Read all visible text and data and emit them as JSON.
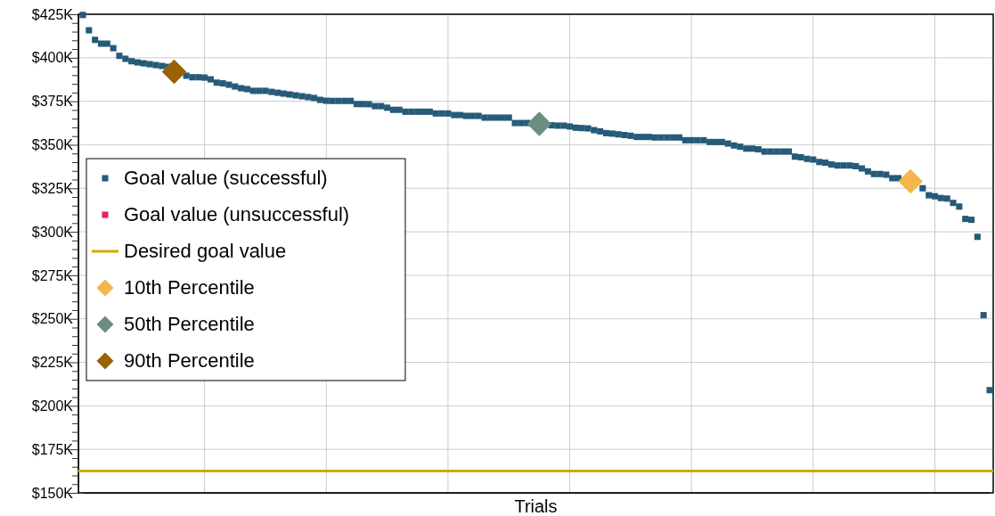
{
  "chart_data": {
    "type": "scatter",
    "xlabel": "Trials",
    "categories": [
      null,
      null,
      null,
      null,
      null,
      null,
      null,
      null,
      null,
      null,
      null,
      null,
      null,
      null,
      null,
      null,
      null,
      null,
      null,
      null,
      null,
      null,
      null,
      null,
      null,
      null,
      null,
      null,
      null,
      null,
      null,
      null,
      null,
      null,
      null,
      null,
      null,
      null,
      null,
      null,
      null,
      null,
      null,
      null,
      null,
      null,
      null,
      null,
      null,
      null,
      null,
      null,
      null,
      null,
      null,
      null,
      null,
      null,
      null,
      null,
      null,
      null,
      null,
      null,
      null,
      null,
      null,
      null,
      null,
      null,
      null,
      null,
      null,
      null,
      null,
      null,
      null,
      null,
      null,
      null,
      null,
      null,
      null,
      null,
      null,
      null,
      null,
      null,
      null,
      null,
      null,
      null,
      null,
      null,
      null,
      null,
      null,
      null,
      null,
      null,
      null,
      null,
      null,
      null,
      null,
      null,
      null,
      null,
      null,
      null,
      null,
      null,
      null,
      null,
      null,
      null,
      null,
      null,
      null,
      null,
      null,
      null,
      null,
      null,
      null,
      null,
      null,
      null,
      null,
      null,
      null,
      null,
      null,
      null,
      null,
      null,
      null,
      null,
      null,
      null,
      null,
      null,
      null,
      null,
      null,
      null,
      null,
      null,
      null,
      null
    ],
    "ylim": [
      150,
      425
    ],
    "yticks": [
      {
        "value": 150,
        "label": "$150K"
      },
      {
        "value": 155,
        "label": null
      },
      {
        "value": 160,
        "label": null
      },
      {
        "value": 165,
        "label": null
      },
      {
        "value": 170,
        "label": null
      },
      {
        "value": 175,
        "label": "$175K"
      },
      {
        "value": 180,
        "label": null
      },
      {
        "value": 185,
        "label": null
      },
      {
        "value": 190,
        "label": null
      },
      {
        "value": 195,
        "label": null
      },
      {
        "value": 200,
        "label": "$200K"
      },
      {
        "value": 205,
        "label": null
      },
      {
        "value": 210,
        "label": null
      },
      {
        "value": 215,
        "label": null
      },
      {
        "value": 220,
        "label": null
      },
      {
        "value": 225,
        "label": "$225K"
      },
      {
        "value": 230,
        "label": null
      },
      {
        "value": 235,
        "label": null
      },
      {
        "value": 240,
        "label": null
      },
      {
        "value": 245,
        "label": null
      },
      {
        "value": 250,
        "label": "$250K"
      },
      {
        "value": 255,
        "label": null
      },
      {
        "value": 260,
        "label": null
      },
      {
        "value": 265,
        "label": null
      },
      {
        "value": 270,
        "label": null
      },
      {
        "value": 275,
        "label": "$275K"
      },
      {
        "value": 280,
        "label": null
      },
      {
        "value": 285,
        "label": null
      },
      {
        "value": 290,
        "label": null
      },
      {
        "value": 295,
        "label": null
      },
      {
        "value": 300,
        "label": "$300K"
      },
      {
        "value": 305,
        "label": null
      },
      {
        "value": 310,
        "label": null
      },
      {
        "value": 315,
        "label": null
      },
      {
        "value": 320,
        "label": null
      },
      {
        "value": 325,
        "label": "$325K"
      },
      {
        "value": 330,
        "label": null
      },
      {
        "value": 335,
        "label": null
      },
      {
        "value": 340,
        "label": null
      },
      {
        "value": 345,
        "label": null
      },
      {
        "value": 350,
        "label": "$350K"
      },
      {
        "value": 355,
        "label": null
      },
      {
        "value": 360,
        "label": null
      },
      {
        "value": 365,
        "label": null
      },
      {
        "value": 370,
        "label": null
      },
      {
        "value": 375,
        "label": "$375K"
      },
      {
        "value": 380,
        "label": null
      },
      {
        "value": 385,
        "label": null
      },
      {
        "value": 390,
        "label": null
      },
      {
        "value": 395,
        "label": null
      },
      {
        "value": 400,
        "label": "$400K"
      },
      {
        "value": 405,
        "label": null
      },
      {
        "value": 410,
        "label": null
      },
      {
        "value": 415,
        "label": null
      },
      {
        "value": 420,
        "label": null
      },
      {
        "value": 425,
        "label": "$425K"
      }
    ],
    "grid": true,
    "legend": "left",
    "ref_lines": [
      {
        "axis": "y",
        "value": 162.5,
        "label": "Desired goal value",
        "color": "#d4a900"
      }
    ],
    "series": [
      {
        "name": "Goal value (successful)",
        "color": "#265a78",
        "marker": "square",
        "values": [
          424.6,
          415.8,
          410.3,
          408.1,
          408.1,
          405.5,
          401.1,
          399.4,
          398.0,
          397.3,
          396.8,
          396.3,
          395.8,
          395.3,
          394.8,
          null,
          null,
          389.7,
          388.8,
          388.8,
          388.6,
          387.6,
          385.7,
          385.3,
          384.5,
          383.5,
          382.5,
          382.0,
          381.0,
          381.0,
          381.0,
          380.4,
          379.9,
          379.4,
          378.9,
          378.4,
          377.9,
          377.4,
          376.9,
          375.8,
          375.3,
          375.2,
          375.2,
          375.2,
          375.2,
          373.4,
          373.4,
          373.3,
          372.2,
          372.2,
          371.3,
          370.1,
          370.1,
          369.0,
          369.0,
          369.0,
          369.0,
          369.0,
          368.0,
          368.0,
          368.0,
          367.1,
          367.1,
          366.6,
          366.6,
          366.6,
          365.6,
          365.6,
          365.6,
          365.6,
          365.6,
          362.5,
          362.5,
          362.5,
          null,
          null,
          null,
          361.2,
          361.0,
          361.0,
          360.5,
          359.8,
          359.6,
          359.4,
          358.4,
          357.7,
          356.7,
          356.4,
          356.0,
          355.6,
          355.2,
          354.5,
          354.5,
          354.5,
          354.2,
          354.2,
          354.2,
          354.2,
          354.2,
          352.6,
          352.6,
          352.6,
          352.6,
          351.6,
          351.6,
          351.6,
          350.7,
          349.6,
          348.9,
          347.8,
          347.8,
          347.4,
          346.1,
          346.1,
          346.1,
          346.1,
          346.1,
          343.2,
          342.8,
          341.9,
          341.5,
          340.1,
          339.7,
          338.7,
          338.1,
          338.1,
          338.1,
          337.7,
          336.4,
          334.7,
          333.2,
          333.2,
          332.8,
          330.8,
          330.8,
          null,
          null,
          null,
          325.0,
          321.0,
          320.4,
          319.4,
          319.1,
          316.6,
          314.5,
          307.4,
          306.9,
          297.1,
          252.1,
          209.0
        ]
      },
      {
        "name": "Goal value (unsuccessful)",
        "color": "#e0245e",
        "marker": "square",
        "values": [
          null,
          null,
          null,
          null,
          null,
          null,
          null,
          null,
          null,
          null,
          null,
          null,
          null,
          null,
          null,
          null,
          null,
          null,
          null,
          null,
          null,
          null,
          null,
          null,
          null,
          null,
          null,
          null,
          null,
          null,
          null,
          null,
          null,
          null,
          null,
          null,
          null,
          null,
          null,
          null,
          null,
          null,
          null,
          null,
          null,
          null,
          null,
          null,
          null,
          null,
          null,
          null,
          null,
          null,
          null,
          null,
          null,
          null,
          null,
          null,
          null,
          null,
          null,
          null,
          null,
          null,
          null,
          null,
          null,
          null,
          null,
          null,
          null,
          null,
          null,
          null,
          null,
          null,
          null,
          null,
          null,
          null,
          null,
          null,
          null,
          null,
          null,
          null,
          null,
          null,
          null,
          null,
          null,
          null,
          null,
          null,
          null,
          null,
          null,
          null,
          null,
          null,
          null,
          null,
          null,
          null,
          null,
          null,
          null,
          null,
          null,
          null,
          null,
          null,
          null,
          null,
          null,
          null,
          null,
          null,
          null,
          null,
          null,
          null,
          null,
          null,
          null,
          null,
          null,
          null,
          null,
          null,
          null,
          null,
          null,
          null,
          null,
          null,
          null,
          null,
          null,
          null,
          null,
          null,
          null,
          null,
          null,
          null,
          null,
          null
        ]
      },
      {
        "name": "10th Percentile",
        "color": "#f4b54a",
        "marker": "diamond",
        "values": [
          null,
          null,
          null,
          null,
          null,
          null,
          null,
          null,
          null,
          null,
          null,
          null,
          null,
          null,
          null,
          null,
          null,
          null,
          null,
          null,
          null,
          null,
          null,
          null,
          null,
          null,
          null,
          null,
          null,
          null,
          null,
          null,
          null,
          null,
          null,
          null,
          null,
          null,
          null,
          null,
          null,
          null,
          null,
          null,
          null,
          null,
          null,
          null,
          null,
          null,
          null,
          null,
          null,
          null,
          null,
          null,
          null,
          null,
          null,
          null,
          null,
          null,
          null,
          null,
          null,
          null,
          null,
          null,
          null,
          null,
          null,
          null,
          null,
          null,
          null,
          null,
          null,
          null,
          null,
          null,
          null,
          null,
          null,
          null,
          null,
          null,
          null,
          null,
          null,
          null,
          null,
          null,
          null,
          null,
          null,
          null,
          null,
          null,
          null,
          null,
          null,
          null,
          null,
          null,
          null,
          null,
          null,
          null,
          null,
          null,
          null,
          null,
          null,
          null,
          null,
          null,
          null,
          null,
          null,
          null,
          null,
          null,
          null,
          null,
          null,
          null,
          null,
          null,
          null,
          null,
          null,
          null,
          null,
          null,
          null,
          null,
          329,
          null,
          null,
          null,
          null,
          null,
          null,
          null,
          null,
          null,
          null,
          null,
          null,
          null
        ]
      },
      {
        "name": "50th Percentile",
        "color": "#6b8e7f",
        "marker": "diamond",
        "values": [
          null,
          null,
          null,
          null,
          null,
          null,
          null,
          null,
          null,
          null,
          null,
          null,
          null,
          null,
          null,
          null,
          null,
          null,
          null,
          null,
          null,
          null,
          null,
          null,
          null,
          null,
          null,
          null,
          null,
          null,
          null,
          null,
          null,
          null,
          null,
          null,
          null,
          null,
          null,
          null,
          null,
          null,
          null,
          null,
          null,
          null,
          null,
          null,
          null,
          null,
          null,
          null,
          null,
          null,
          null,
          null,
          null,
          null,
          null,
          null,
          null,
          null,
          null,
          null,
          null,
          null,
          null,
          null,
          null,
          null,
          null,
          null,
          null,
          null,
          null,
          362,
          null,
          null,
          null,
          null,
          null,
          null,
          null,
          null,
          null,
          null,
          null,
          null,
          null,
          null,
          null,
          null,
          null,
          null,
          null,
          null,
          null,
          null,
          null,
          null,
          null,
          null,
          null,
          null,
          null,
          null,
          null,
          null,
          null,
          null,
          null,
          null,
          null,
          null,
          null,
          null,
          null,
          null,
          null,
          null,
          null,
          null,
          null,
          null,
          null,
          null,
          null,
          null,
          null,
          null,
          null,
          null,
          null,
          null,
          null,
          null,
          null,
          null,
          null,
          null,
          null,
          null,
          null,
          null,
          null,
          null,
          null,
          null,
          null,
          null
        ]
      },
      {
        "name": "90th Percentile",
        "color": "#9a6205",
        "marker": "diamond",
        "values": [
          null,
          null,
          null,
          null,
          null,
          null,
          null,
          null,
          null,
          null,
          null,
          null,
          null,
          null,
          null,
          392,
          null,
          null,
          null,
          null,
          null,
          null,
          null,
          null,
          null,
          null,
          null,
          null,
          null,
          null,
          null,
          null,
          null,
          null,
          null,
          null,
          null,
          null,
          null,
          null,
          null,
          null,
          null,
          null,
          null,
          null,
          null,
          null,
          null,
          null,
          null,
          null,
          null,
          null,
          null,
          null,
          null,
          null,
          null,
          null,
          null,
          null,
          null,
          null,
          null,
          null,
          null,
          null,
          null,
          null,
          null,
          null,
          null,
          null,
          null,
          null,
          null,
          null,
          null,
          null,
          null,
          null,
          null,
          null,
          null,
          null,
          null,
          null,
          null,
          null,
          null,
          null,
          null,
          null,
          null,
          null,
          null,
          null,
          null,
          null,
          null,
          null,
          null,
          null,
          null,
          null,
          null,
          null,
          null,
          null,
          null,
          null,
          null,
          null,
          null,
          null,
          null,
          null,
          null,
          null,
          null,
          null,
          null,
          null,
          null,
          null,
          null,
          null,
          null,
          null,
          null,
          null,
          null,
          null,
          null,
          null,
          null,
          null,
          null,
          null,
          null,
          null,
          null,
          null,
          null,
          null,
          null,
          null,
          null,
          null
        ]
      }
    ]
  }
}
